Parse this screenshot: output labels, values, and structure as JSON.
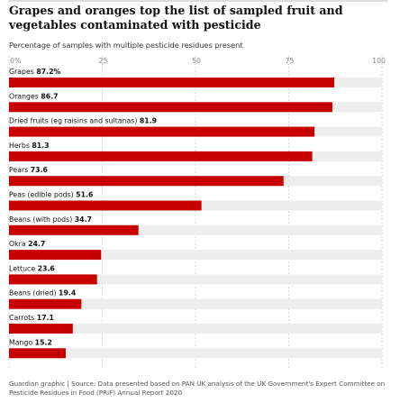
{
  "title": "Grapes and oranges top the list of sampled fruit and vegetables contaminated with pesticide",
  "subtitle": "Percentage of samples with multiple pesticide residues present",
  "source": "Guardian graphic | Source: Data presented based on PAN UK analysis of the UK Government's Expert Committee on Pesticide Residues in Food (PRiF) Annual Report 2020",
  "colors": {
    "bar": "#c70000",
    "track": "#ededed",
    "gridline": "#cccccc"
  },
  "chart_data": {
    "type": "bar",
    "orientation": "horizontal",
    "categories": [
      "Grapes",
      "Oranges",
      "Dried fruits (eg raisins and sultanas)",
      "Herbs",
      "Pears",
      "Peas (edible pods)",
      "Beans (with pods)",
      "Okra",
      "Lettuce",
      "Beans (dried)",
      "Carrots",
      "Mango"
    ],
    "values": [
      87.2,
      86.7,
      81.9,
      81.3,
      73.6,
      51.6,
      34.7,
      24.7,
      23.6,
      19.4,
      17.1,
      15.2
    ],
    "value_labels": [
      "87.2%",
      "86.7",
      "81.9",
      "81.3",
      "73.6",
      "51.6",
      "34.7",
      "24.7",
      "23.6",
      "19.4",
      "17.1",
      "15.2"
    ],
    "xlim": [
      0,
      100
    ],
    "ticks": [
      0,
      25,
      50,
      75,
      100
    ],
    "tick_labels": [
      "0%",
      "25",
      "50",
      "75",
      "100"
    ],
    "grid": true
  }
}
